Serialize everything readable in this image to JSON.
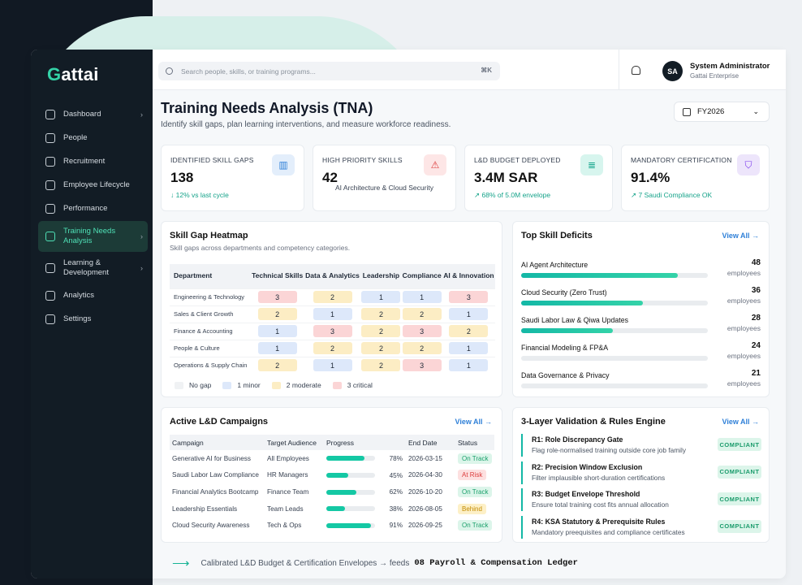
{
  "brand": {
    "logo_first": "G",
    "logo_rest": "attai"
  },
  "sidebar": {
    "items": [
      {
        "label": "Dashboard",
        "chevron": "›"
      },
      {
        "label": "People",
        "chevron": ""
      },
      {
        "label": "Recruitment",
        "chevron": ""
      },
      {
        "label": "Employee Lifecycle",
        "chevron": ""
      },
      {
        "label": "Performance",
        "chevron": ""
      },
      {
        "label": "Training Needs Analysis",
        "chevron": "›"
      },
      {
        "label": "Learning & Development",
        "chevron": "›"
      },
      {
        "label": "Analytics",
        "chevron": ""
      },
      {
        "label": "Settings",
        "chevron": ""
      }
    ]
  },
  "topbar": {
    "search_placeholder": "Search people, skills, or training programs...",
    "shortcut": "⌘K",
    "user_initials": "SA",
    "user_name": "System Administrator",
    "user_org": "Gattai Enterprise"
  },
  "page": {
    "title": "Training Needs Analysis (TNA)",
    "subtitle": "Identify skill gaps, plan learning interventions, and measure workforce readiness.",
    "fiscal_year": "FY2026"
  },
  "kpis": [
    {
      "label": "IDENTIFIED SKILL GAPS",
      "value": "138",
      "sub": "↓  12% vs last cycle",
      "color": "#2f80d8"
    },
    {
      "label": "HIGH PRIORITY SKILLS",
      "value": "42",
      "sub": "AI Architecture & Cloud Security",
      "color": "#dc3c3c"
    },
    {
      "label": "L&D BUDGET DEPLOYED",
      "value": "3.4M SAR",
      "sub": "↗  68% of 5.0M envelope",
      "color": "#14b8a6"
    },
    {
      "label": "MANDATORY CERTIFICATION",
      "value": "91.4%",
      "sub": "↗  7 Saudi Compliance OK",
      "color": "#7c3aed"
    }
  ],
  "heatmap": {
    "title": "Skill Gap Heatmap",
    "subtitle": "Skill gaps across departments and competency categories.",
    "dept_header": "Department",
    "columns": [
      "Technical Skills",
      "Data & Analytics",
      "Leadership",
      "Compliance",
      "AI & Innovation"
    ],
    "rows": [
      {
        "dept": "Engineering & Technology",
        "values": [
          "3",
          "2",
          "1",
          "1",
          "3"
        ]
      },
      {
        "dept": "Sales & Client Growth",
        "values": [
          "2",
          "1",
          "2",
          "2",
          "1"
        ]
      },
      {
        "dept": "Finance & Accounting",
        "values": [
          "1",
          "3",
          "2",
          "3",
          "2"
        ]
      },
      {
        "dept": "People & Culture",
        "values": [
          "1",
          "2",
          "2",
          "2",
          "1"
        ]
      },
      {
        "dept": "Operations & Supply Chain",
        "values": [
          "2",
          "1",
          "2",
          "3",
          "1"
        ]
      }
    ],
    "legend": [
      "No gap",
      "1 minor",
      "2 moderate",
      "3 critical"
    ]
  },
  "deficits": {
    "title": "Top Skill Deficits",
    "view_all": "View All →",
    "unit": "employees",
    "items": [
      {
        "name": "AI Agent Architecture",
        "count": "48",
        "pct": 84
      },
      {
        "name": "Cloud Security (Zero Trust)",
        "count": "36",
        "pct": 65
      },
      {
        "name": "Saudi Labor Law & Qiwa Updates",
        "count": "28",
        "pct": 49
      },
      {
        "name": "Financial Modeling & FP&A",
        "count": "24",
        "pct": 0
      },
      {
        "name": "Data Governance & Privacy",
        "count": "21",
        "pct": 0
      }
    ]
  },
  "campaigns": {
    "title": "Active L&D Campaigns",
    "view_all": "View All →",
    "headers": [
      "Campaign",
      "Target Audience",
      "Progress",
      "End Date",
      "Status"
    ],
    "rows": [
      {
        "name": "Generative AI for Business",
        "audience": "All Employees",
        "progress": 78,
        "progress_label": "78%",
        "end": "2026-03-15",
        "status": "On Track",
        "kind": "on"
      },
      {
        "name": "Saudi Labor Law Compliance",
        "audience": "HR Managers",
        "progress": 45,
        "progress_label": "45%",
        "end": "2026-04-30",
        "status": "At Risk",
        "kind": "risk"
      },
      {
        "name": "Financial Analytics Bootcamp",
        "audience": "Finance Team",
        "progress": 62,
        "progress_label": "62%",
        "end": "2026-10-20",
        "status": "On Track",
        "kind": "on"
      },
      {
        "name": "Leadership Essentials",
        "audience": "Team Leads",
        "progress": 38,
        "progress_label": "38%",
        "end": "2026-08-05",
        "status": "Behind",
        "kind": "beh"
      },
      {
        "name": "Cloud Security Awareness",
        "audience": "Tech & Ops",
        "progress": 91,
        "progress_label": "91%",
        "end": "2026-09-25",
        "status": "On Track",
        "kind": "on"
      }
    ]
  },
  "validation": {
    "title": "3-Layer Validation & Rules Engine",
    "view_all": "View All →",
    "rules": [
      {
        "title": "R1: Role Discrepancy Gate",
        "desc": "Flag role-normalised training outside core job family",
        "status": "COMPLIANT"
      },
      {
        "title": "R2: Precision Window Exclusion",
        "desc": "Filter implausible short-duration certifications",
        "status": "COMPLIANT"
      },
      {
        "title": "R3: Budget Envelope Threshold",
        "desc": "Ensure total training cost fits annual allocation",
        "status": "COMPLIANT"
      },
      {
        "title": "R4: KSA Statutory & Prerequisite Rules",
        "desc": "Mandatory preequisites and compliance certificates",
        "status": "COMPLIANT"
      }
    ]
  },
  "footer": {
    "text": "Calibrated L&D Budget & Certification Envelopes → feeds",
    "target": "08 Payroll & Compensation Ledger"
  }
}
